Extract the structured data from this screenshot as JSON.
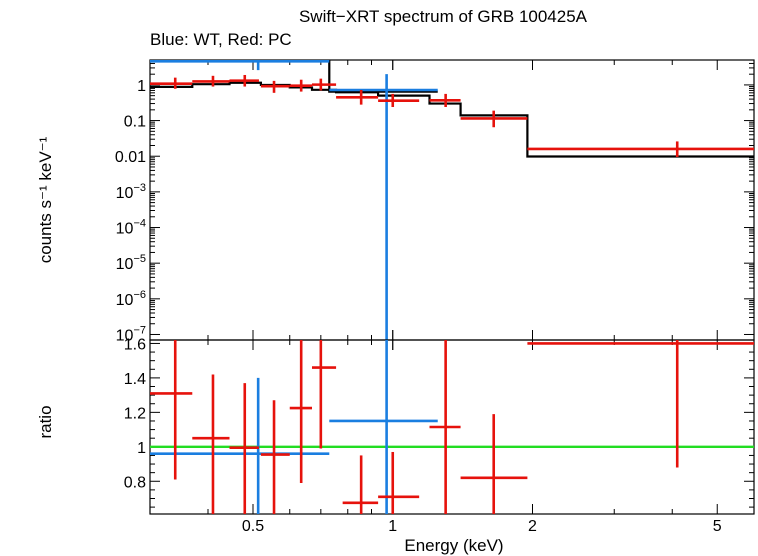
{
  "title": "Swift−XRT spectrum of GRB 100425A",
  "subtitle": "Blue: WT, Red: PC",
  "colors": {
    "wt": "#1a7ee0",
    "pc": "#e6120c",
    "model": "#000000",
    "unity": "#22dd22",
    "frame": "#000000"
  },
  "chart_data": [
    {
      "type": "scatter",
      "panel": "spectrum",
      "ylabel": "counts s⁻¹ keV⁻¹",
      "xscale": "log",
      "yscale": "log",
      "xlim": [
        0.3,
        6.0
      ],
      "ylim": [
        7e-08,
        5
      ],
      "yticks": [
        {
          "value": 1,
          "label": "1"
        },
        {
          "value": 0.1,
          "label": "0.1"
        },
        {
          "value": 0.01,
          "label": "0.01"
        },
        {
          "value": 0.001,
          "base": "10",
          "exp": "−3"
        },
        {
          "value": 0.0001,
          "base": "10",
          "exp": "−4"
        },
        {
          "value": 1e-05,
          "base": "10",
          "exp": "−5"
        },
        {
          "value": 1e-06,
          "base": "10",
          "exp": "−6"
        },
        {
          "value": 1e-07,
          "base": "10",
          "exp": "−7"
        }
      ],
      "series": [
        {
          "name": "WT",
          "points": [
            {
              "x": 0.513,
              "xlo": 0.3,
              "xhi": 0.73,
              "y": 4.6,
              "ylo": 2.6,
              "yhi": 6.0
            },
            {
              "x": 0.97,
              "xlo": 0.73,
              "xhi": 1.25,
              "y": 0.72,
              "ylo": 7e-08,
              "yhi": 2.0
            }
          ]
        },
        {
          "name": "PC",
          "points": [
            {
              "x": 0.34,
              "xlo": 0.3,
              "xhi": 0.37,
              "y": 1.08,
              "ylo": 0.78,
              "yhi": 1.6
            },
            {
              "x": 0.41,
              "xlo": 0.37,
              "xhi": 0.445,
              "y": 1.25,
              "ylo": 0.9,
              "yhi": 1.8
            },
            {
              "x": 0.48,
              "xlo": 0.445,
              "xhi": 0.515,
              "y": 1.32,
              "ylo": 0.9,
              "yhi": 1.9
            },
            {
              "x": 0.555,
              "xlo": 0.52,
              "xhi": 0.6,
              "y": 0.92,
              "ylo": 0.6,
              "yhi": 1.3
            },
            {
              "x": 0.635,
              "xlo": 0.6,
              "xhi": 0.67,
              "y": 0.95,
              "ylo": 0.65,
              "yhi": 1.4
            },
            {
              "x": 0.7,
              "xlo": 0.67,
              "xhi": 0.755,
              "y": 1.02,
              "ylo": 0.7,
              "yhi": 1.5
            },
            {
              "x": 0.855,
              "xlo": 0.755,
              "xhi": 0.93,
              "y": 0.45,
              "ylo": 0.28,
              "yhi": 0.72
            },
            {
              "x": 1.0,
              "xlo": 0.93,
              "xhi": 1.14,
              "y": 0.36,
              "ylo": 0.24,
              "yhi": 0.56
            },
            {
              "x": 1.3,
              "xlo": 1.2,
              "xhi": 1.4,
              "y": 0.37,
              "ylo": 0.24,
              "yhi": 0.56
            },
            {
              "x": 1.65,
              "xlo": 1.4,
              "xhi": 1.95,
              "y": 0.115,
              "ylo": 0.065,
              "yhi": 0.19
            },
            {
              "x": 4.1,
              "xlo": 1.95,
              "xhi": 6.0,
              "y": 0.016,
              "ylo": 0.0095,
              "yhi": 0.026
            }
          ]
        }
      ],
      "model_steps": [
        {
          "xlo": 0.3,
          "xhi": 0.37,
          "y": 0.88
        },
        {
          "xlo": 0.37,
          "xhi": 0.445,
          "y": 1.05
        },
        {
          "xlo": 0.445,
          "xhi": 0.52,
          "y": 1.15
        },
        {
          "xlo": 0.52,
          "xhi": 0.6,
          "y": 1.0
        },
        {
          "xlo": 0.6,
          "xhi": 0.67,
          "y": 0.85
        },
        {
          "xlo": 0.67,
          "xhi": 0.755,
          "y": 0.73
        },
        {
          "xlo": 0.755,
          "xhi": 0.93,
          "y": 0.62
        },
        {
          "xlo": 0.93,
          "xhi": 1.2,
          "y": 0.5
        },
        {
          "xlo": 1.2,
          "xhi": 1.4,
          "y": 0.3
        },
        {
          "xlo": 1.4,
          "xhi": 1.95,
          "y": 0.14
        },
        {
          "xlo": 1.95,
          "xhi": 6.0,
          "y": 0.0098
        }
      ],
      "model_steps_wt": [
        {
          "xlo": 0.3,
          "xhi": 0.73,
          "y": 4.6
        },
        {
          "xlo": 0.73,
          "xhi": 1.25,
          "y": 0.65
        }
      ]
    },
    {
      "type": "scatter",
      "panel": "ratio",
      "xlabel": "Energy (keV)",
      "ylabel": "ratio",
      "xscale": "log",
      "xlim": [
        0.3,
        6.0
      ],
      "ylim": [
        0.61,
        1.62
      ],
      "xticks": [
        {
          "value": 0.5,
          "label": "0.5"
        },
        {
          "value": 1,
          "label": "1"
        },
        {
          "value": 2,
          "label": "2"
        },
        {
          "value": 5,
          "label": "5"
        }
      ],
      "yticks": [
        {
          "value": 0.8,
          "label": "0.8"
        },
        {
          "value": 1.0,
          "label": "1"
        },
        {
          "value": 1.2,
          "label": "1.2"
        },
        {
          "value": 1.4,
          "label": "1.4"
        },
        {
          "value": 1.6,
          "label": "1.6"
        }
      ],
      "reference_line": 1.0,
      "series": [
        {
          "name": "WT",
          "points": [
            {
              "x": 0.513,
              "xlo": 0.3,
              "xhi": 0.73,
              "y": 0.96,
              "ylo": 0.6,
              "yhi": 1.4
            },
            {
              "x": 0.97,
              "xlo": 0.73,
              "xhi": 1.25,
              "y": 1.15,
              "ylo": 0.6,
              "yhi": 1.65
            }
          ]
        },
        {
          "name": "PC",
          "points": [
            {
              "x": 0.34,
              "xlo": 0.3,
              "xhi": 0.37,
              "y": 1.31,
              "ylo": 0.81,
              "yhi": 1.65
            },
            {
              "x": 0.41,
              "xlo": 0.37,
              "xhi": 0.445,
              "y": 1.05,
              "ylo": 0.6,
              "yhi": 1.42
            },
            {
              "x": 0.48,
              "xlo": 0.445,
              "xhi": 0.515,
              "y": 0.995,
              "ylo": 0.6,
              "yhi": 1.37
            },
            {
              "x": 0.555,
              "xlo": 0.52,
              "xhi": 0.6,
              "y": 0.955,
              "ylo": 0.6,
              "yhi": 1.27
            },
            {
              "x": 0.635,
              "xlo": 0.6,
              "xhi": 0.67,
              "y": 1.225,
              "ylo": 0.79,
              "yhi": 1.65
            },
            {
              "x": 0.7,
              "xlo": 0.67,
              "xhi": 0.755,
              "y": 1.46,
              "ylo": 0.99,
              "yhi": 1.65
            },
            {
              "x": 0.855,
              "xlo": 0.78,
              "xhi": 0.93,
              "y": 0.675,
              "ylo": 0.6,
              "yhi": 0.95
            },
            {
              "x": 1.0,
              "xlo": 0.93,
              "xhi": 1.14,
              "y": 0.71,
              "ylo": 0.6,
              "yhi": 0.97
            },
            {
              "x": 1.3,
              "xlo": 1.2,
              "xhi": 1.4,
              "y": 1.115,
              "ylo": 0.6,
              "yhi": 1.65
            },
            {
              "x": 1.65,
              "xlo": 1.4,
              "xhi": 1.95,
              "y": 0.82,
              "ylo": 0.6,
              "yhi": 1.19
            },
            {
              "x": 4.1,
              "xlo": 1.95,
              "xhi": 6.0,
              "y": 1.6,
              "ylo": 0.88,
              "yhi": 1.65
            }
          ]
        }
      ]
    }
  ]
}
